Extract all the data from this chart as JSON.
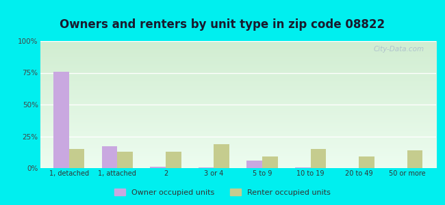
{
  "title": "Owners and renters by unit type in zip code 08822",
  "categories": [
    "1, detached",
    "1, attached",
    "2",
    "3 or 4",
    "5 to 9",
    "10 to 19",
    "20 to 49",
    "50 or more"
  ],
  "owner_values": [
    76,
    17,
    1,
    0.5,
    6,
    0.5,
    0,
    0
  ],
  "renter_values": [
    15,
    13,
    13,
    19,
    9,
    15,
    9,
    14
  ],
  "owner_color": "#c9a8e0",
  "renter_color": "#c5cc8e",
  "background_color": "#00efef",
  "title_fontsize": 12,
  "ylabel_ticks": [
    "0%",
    "25%",
    "50%",
    "75%",
    "100%"
  ],
  "ylabel_values": [
    0,
    25,
    50,
    75,
    100
  ],
  "ylim": [
    0,
    100
  ],
  "bar_width": 0.32,
  "watermark": "City-Data.com",
  "legend_owner": "Owner occupied units",
  "legend_renter": "Renter occupied units"
}
